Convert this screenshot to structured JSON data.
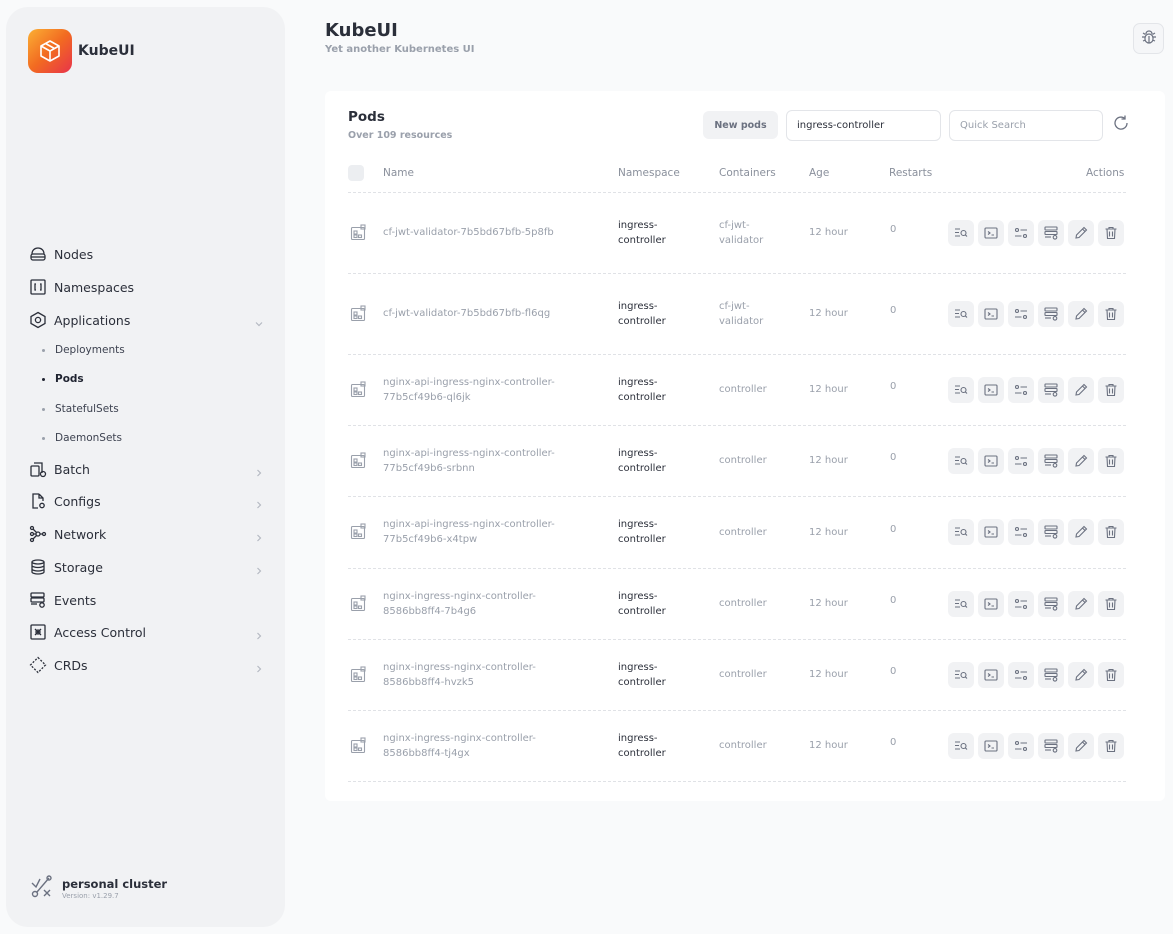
{
  "brand": {
    "name": "KubeUI"
  },
  "header": {
    "title": "KubeUI",
    "subtitle": "Yet another Kubernetes UI"
  },
  "sidebar": {
    "items": [
      {
        "label": "Nodes",
        "icon": "nodes-icon"
      },
      {
        "label": "Namespaces",
        "icon": "namespaces-icon"
      },
      {
        "label": "Applications",
        "icon": "applications-icon",
        "expanded": true
      },
      {
        "label": "Batch",
        "icon": "batch-icon"
      },
      {
        "label": "Configs",
        "icon": "configs-icon"
      },
      {
        "label": "Network",
        "icon": "network-icon"
      },
      {
        "label": "Storage",
        "icon": "storage-icon"
      },
      {
        "label": "Events",
        "icon": "events-icon"
      },
      {
        "label": "Access Control",
        "icon": "access-control-icon"
      },
      {
        "label": "CRDs",
        "icon": "crds-icon"
      }
    ],
    "sub_items": [
      {
        "label": "Deployments"
      },
      {
        "label": "Pods",
        "active": true
      },
      {
        "label": "StatefulSets"
      },
      {
        "label": "DaemonSets"
      }
    ]
  },
  "cluster": {
    "name": "personal cluster",
    "version": "Version: v1.29.7"
  },
  "card": {
    "title": "Pods",
    "subtitle": "Over 109 resources",
    "new_button": "New pods",
    "namespace_value": "ingress-controller",
    "search_placeholder": "Quick Search"
  },
  "table": {
    "headers": {
      "name": "Name",
      "namespace": "Namespace",
      "containers": "Containers",
      "age": "Age",
      "restarts": "Restarts",
      "actions": "Actions"
    },
    "rows": [
      {
        "name_1": "cf-jwt-validator-7b5bd67bfb-5p8fb",
        "name_2": "",
        "ns_1": "ingress-",
        "ns_2": "controller",
        "cont_1": "cf-jwt-",
        "cont_2": "validator",
        "age": "12 hour",
        "restarts": "0"
      },
      {
        "name_1": "cf-jwt-validator-7b5bd67bfb-fl6qg",
        "name_2": "",
        "ns_1": "ingress-",
        "ns_2": "controller",
        "cont_1": "cf-jwt-",
        "cont_2": "validator",
        "age": "12 hour",
        "restarts": "0"
      },
      {
        "name_1": "nginx-api-ingress-nginx-controller-",
        "name_2": "77b5cf49b6-ql6jk",
        "ns_1": "ingress-",
        "ns_2": "controller",
        "cont_1": "controller",
        "cont_2": "",
        "age": "12 hour",
        "restarts": "0"
      },
      {
        "name_1": "nginx-api-ingress-nginx-controller-",
        "name_2": "77b5cf49b6-srbnn",
        "ns_1": "ingress-",
        "ns_2": "controller",
        "cont_1": "controller",
        "cont_2": "",
        "age": "12 hour",
        "restarts": "0"
      },
      {
        "name_1": "nginx-api-ingress-nginx-controller-",
        "name_2": "77b5cf49b6-x4tpw",
        "ns_1": "ingress-",
        "ns_2": "controller",
        "cont_1": "controller",
        "cont_2": "",
        "age": "12 hour",
        "restarts": "0"
      },
      {
        "name_1": "nginx-ingress-nginx-controller-",
        "name_2": "8586bb8ff4-7b4g6",
        "ns_1": "ingress-",
        "ns_2": "controller",
        "cont_1": "controller",
        "cont_2": "",
        "age": "12 hour",
        "restarts": "0"
      },
      {
        "name_1": "nginx-ingress-nginx-controller-",
        "name_2": "8586bb8ff4-hvzk5",
        "ns_1": "ingress-",
        "ns_2": "controller",
        "cont_1": "controller",
        "cont_2": "",
        "age": "12 hour",
        "restarts": "0"
      },
      {
        "name_1": "nginx-ingress-nginx-controller-",
        "name_2": "8586bb8ff4-tj4gx",
        "ns_1": "ingress-",
        "ns_2": "controller",
        "cont_1": "controller",
        "cont_2": "",
        "age": "12 hour",
        "restarts": "0"
      }
    ],
    "action_icons": [
      "describe-icon",
      "terminal-icon",
      "options-icon",
      "logs-icon",
      "edit-icon",
      "delete-icon"
    ]
  },
  "colors": {
    "accent_start": "#fbb034",
    "accent_end": "#e8334a",
    "sidebar_bg": "#f1f2f4",
    "page_bg": "#f9fafb"
  }
}
